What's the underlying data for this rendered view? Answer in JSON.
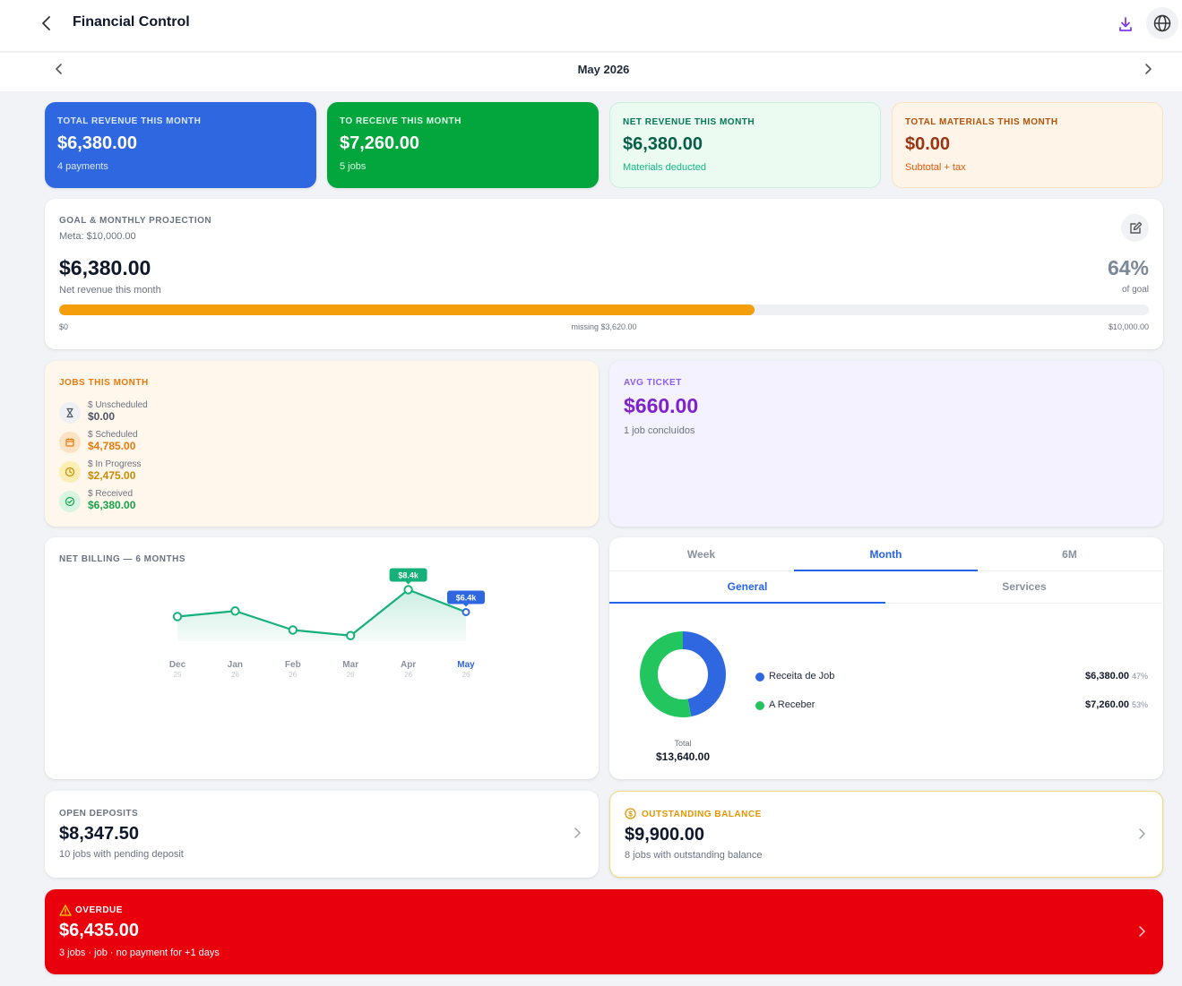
{
  "header": {
    "title": "Financial Control",
    "back_icon": "chevron-left-icon",
    "download_icon": "download-icon",
    "language_icon": "globe-icon"
  },
  "month": {
    "label": "May 2026"
  },
  "kpis": [
    {
      "label": "TOTAL REVENUE THIS MONTH",
      "value": "$6,380.00",
      "sub": "4 payments",
      "color": "#2f67e0"
    },
    {
      "label": "TO RECEIVE THIS MONTH",
      "value": "$7,260.00",
      "sub": "5 jobs",
      "color": "#03a63c"
    },
    {
      "label": "NET REVENUE THIS MONTH",
      "value": "$6,380.00",
      "sub": "Materials deducted",
      "color": "#ecfbf2"
    },
    {
      "label": "TOTAL MATERIALS THIS MONTH",
      "value": "$0.00",
      "sub": "Subtotal + tax",
      "color": "#fff4e8"
    }
  ],
  "goal": {
    "label": "GOAL & MONTHLY PROJECTION",
    "meta": "Meta: $10,000.00",
    "value": "$6,380.00",
    "value_sub": "Net revenue this month",
    "percent": "64%",
    "percent_sub": "of goal",
    "progress": 0.638,
    "min_label": "$0",
    "missing_label": "missing $3,620.00",
    "max_label": "$10,000.00"
  },
  "jobs": {
    "label": "JOBS THIS MONTH",
    "rows": [
      {
        "sub": "$ Unscheduled",
        "value": "$0.00",
        "icon": "hourglass-icon",
        "color": "#4b5563",
        "bg": "#eef0f4"
      },
      {
        "sub": "$ Scheduled",
        "value": "$4,785.00",
        "icon": "calendar-icon",
        "color": "#ea7a0c",
        "bg": "#fde3c4"
      },
      {
        "sub": "$ In Progress",
        "value": "$2,475.00",
        "icon": "clock-icon",
        "color": "#ca8a04",
        "bg": "#fdeeb3"
      },
      {
        "sub": "$ Received",
        "value": "$6,380.00",
        "icon": "check-circle-icon",
        "color": "#16a34a",
        "bg": "#d7f5e1"
      }
    ]
  },
  "avg_ticket": {
    "label": "AVG TICKET",
    "value": "$660.00",
    "sub": "1 job concluídos"
  },
  "chart_data": {
    "type": "area",
    "title": "NET BILLING — 6 MONTHS",
    "categories": [
      "Dec",
      "Jan",
      "Feb",
      "Mar",
      "Apr",
      "May"
    ],
    "years": [
      "25",
      "26",
      "26",
      "26",
      "26",
      "26"
    ],
    "values": [
      6.0,
      6.5,
      4.8,
      4.3,
      8.4,
      6.4
    ],
    "unit": "k",
    "highlight_labels": [
      {
        "index": 4,
        "text": "$8.4k"
      },
      {
        "index": 5,
        "text": "$6.4k"
      }
    ],
    "current_index": 5,
    "line_color": "#16b07a",
    "current_color": "#2f67e0"
  },
  "breakdown": {
    "tabs": [
      "Week",
      "Month",
      "6M"
    ],
    "active_tab": 1,
    "subtabs": [
      "General",
      "Services"
    ],
    "active_subtab": 0,
    "total_label": "Total",
    "total_value": "$13,640.00",
    "items": [
      {
        "name": "Receita de Job",
        "value": "$6,380.00",
        "pct": "47%",
        "share": 0.468,
        "color": "#2f67e0"
      },
      {
        "name": "A Receber",
        "value": "$7,260.00",
        "pct": "53%",
        "share": 0.532,
        "color": "#22c55e"
      }
    ]
  },
  "deposits": {
    "label": "OPEN DEPOSITS",
    "value": "$8,347.50",
    "sub": "10 jobs with pending deposit"
  },
  "outstanding": {
    "label": "OUTSTANDING BALANCE",
    "value": "$9,900.00",
    "sub": "8 jobs with outstanding balance",
    "icon": "dollar-coin-icon"
  },
  "overdue": {
    "label": "OVERDUE",
    "value": "$6,435.00",
    "sub": "3 jobs · job · no payment for +1 days",
    "icon": "warning-icon",
    "color": "#e8000d"
  }
}
